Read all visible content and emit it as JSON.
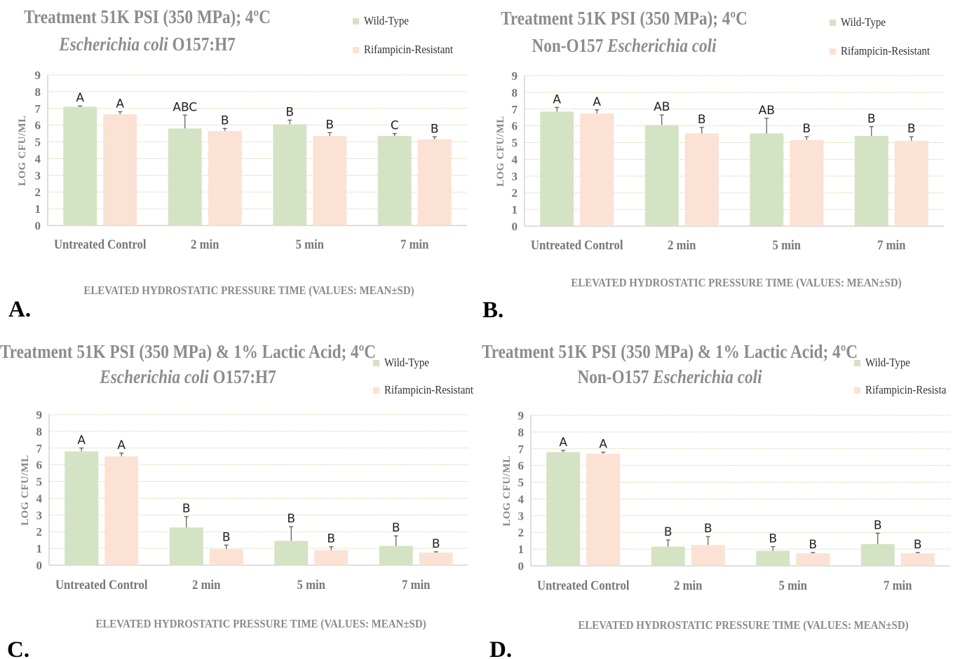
{
  "figure": {
    "panel_labels": [
      "A.",
      "B.",
      "C.",
      "D."
    ],
    "colors": {
      "wild_type": "#d5e3c5",
      "rifampicin": "#fbe2d4",
      "grid": "#c9d3a4",
      "axis": "#bfbfbf",
      "title": "#8c8c8c",
      "text": "#777777",
      "annotation": "#222222"
    }
  },
  "chart_data": [
    {
      "type": "bar",
      "title_line1": "Treatment  51K PSI (350 MPa); 4ºC",
      "title_line2_italic": "Escherichia  coli",
      "title_line2_plain": " O157:H7",
      "ylabel": "LOG  CFU/ML",
      "xlabel": "ELEVATED  HYDROSTATIC  PRESSURE  TIME  (VALUES:  MEAN±SD)",
      "categories": [
        "Untreated Control",
        "2 min",
        "5 min",
        "7 min"
      ],
      "yticks": [
        "0",
        "1",
        "2",
        "3",
        "4",
        "5",
        "6",
        "7",
        "8",
        "9"
      ],
      "ylim": [
        0,
        9
      ],
      "grid": true,
      "legend_position": "top-right",
      "legend": [
        "Wild-Type",
        "Rifampicin-Resistant"
      ],
      "series": [
        {
          "name": "Wild-Type",
          "values": [
            7.1,
            5.8,
            6.05,
            5.35
          ],
          "errors": [
            0.05,
            0.8,
            0.25,
            0.15
          ],
          "labels": [
            "A",
            "ABC",
            "B",
            "C"
          ]
        },
        {
          "name": "Rifampicin-Resistant",
          "values": [
            6.65,
            5.65,
            5.35,
            5.15
          ],
          "errors": [
            0.15,
            0.15,
            0.2,
            0.15
          ],
          "labels": [
            "A",
            "B",
            "B",
            "B"
          ]
        }
      ]
    },
    {
      "type": "bar",
      "title_line1": "Treatment  51K PSI (350 MPa); 4ºC",
      "title_line2_plain_pre": "Non-O157 ",
      "title_line2_italic": "Escherichia  coli",
      "ylabel": "LOG  CFU/ML",
      "xlabel": "ELEVATED  HYDROSTATIC  PRESSURE  TIME  (VALUES:  MEAN±SD)",
      "categories": [
        "Untreated Control",
        "2 min",
        "5 min",
        "7 min"
      ],
      "yticks": [
        "0",
        "1",
        "2",
        "3",
        "4",
        "5",
        "6",
        "7",
        "8",
        "9"
      ],
      "ylim": [
        0,
        9
      ],
      "grid": true,
      "legend_position": "top-right",
      "legend": [
        "Wild-Type",
        "Rifampicin-Resistant"
      ],
      "series": [
        {
          "name": "Wild-Type",
          "values": [
            6.85,
            6.05,
            5.55,
            5.4
          ],
          "errors": [
            0.25,
            0.6,
            0.9,
            0.55
          ],
          "labels": [
            "A",
            "AB",
            "AB",
            "B"
          ]
        },
        {
          "name": "Rifampicin-Resistant",
          "values": [
            6.75,
            5.55,
            5.15,
            5.1
          ],
          "errors": [
            0.2,
            0.35,
            0.2,
            0.25
          ],
          "labels": [
            "A",
            "B",
            "B",
            "B"
          ]
        }
      ]
    },
    {
      "type": "bar",
      "title_line1": "Treatment 51K PSI (350 MPa) & 1% Lactic Acid; 4ºC",
      "title_line2_italic": "Escherichia  coli",
      "title_line2_plain": " O157:H7",
      "ylabel": "LOG  CFU/ML",
      "xlabel": "ELEVATED  HYDROSTATIC  PRESSURE  TIME  (VALUES:  MEAN±SD)",
      "categories": [
        "Untreated Control",
        "2 min",
        "5 min",
        "7 min"
      ],
      "yticks": [
        "0",
        "1",
        "2",
        "3",
        "4",
        "5",
        "6",
        "7",
        "8",
        "9"
      ],
      "ylim": [
        0,
        9
      ],
      "grid": true,
      "legend_position": "top-right",
      "legend": [
        "Wild-Type",
        "Rifampicin-Resistant"
      ],
      "series": [
        {
          "name": "Wild-Type",
          "values": [
            6.8,
            2.25,
            1.45,
            1.15
          ],
          "errors": [
            0.2,
            0.65,
            0.85,
            0.6
          ],
          "labels": [
            "A",
            "B",
            "B",
            "B"
          ]
        },
        {
          "name": "Rifampicin-Resistant",
          "values": [
            6.5,
            0.95,
            0.9,
            0.75
          ],
          "errors": [
            0.2,
            0.25,
            0.2,
            0.05
          ],
          "labels": [
            "A",
            "B",
            "B",
            "B"
          ]
        }
      ]
    },
    {
      "type": "bar",
      "title_line1": "Treatment 51K PSI (350 MPa) & 1% Lactic Acid; 4ºC",
      "title_line2_plain_pre": "Non-O157 ",
      "title_line2_italic": "Escherichia  coli",
      "ylabel": "LOG  CFU/ML",
      "xlabel": "ELEVATED  HYDROSTATIC  PRESSURE  TIME  (VALUES:  MEAN±SD)",
      "categories": [
        "Untreated Control",
        "2 min",
        "5 min",
        "7 min"
      ],
      "yticks": [
        "0",
        "1",
        "2",
        "3",
        "4",
        "5",
        "6",
        "7",
        "8",
        "9"
      ],
      "ylim": [
        0,
        9
      ],
      "grid": true,
      "legend_position": "top-right",
      "legend": [
        "Wild-Type",
        "Rifampicin-Resista"
      ],
      "series": [
        {
          "name": "Wild-Type",
          "values": [
            6.8,
            1.15,
            0.9,
            1.3
          ],
          "errors": [
            0.1,
            0.4,
            0.25,
            0.65
          ],
          "labels": [
            "A",
            "B",
            "B",
            "B"
          ]
        },
        {
          "name": "Rifampicin-Resistant",
          "values": [
            6.7,
            1.25,
            0.75,
            0.75
          ],
          "errors": [
            0.1,
            0.5,
            0.05,
            0.05
          ],
          "labels": [
            "A",
            "B",
            "B",
            "B"
          ]
        }
      ]
    }
  ]
}
